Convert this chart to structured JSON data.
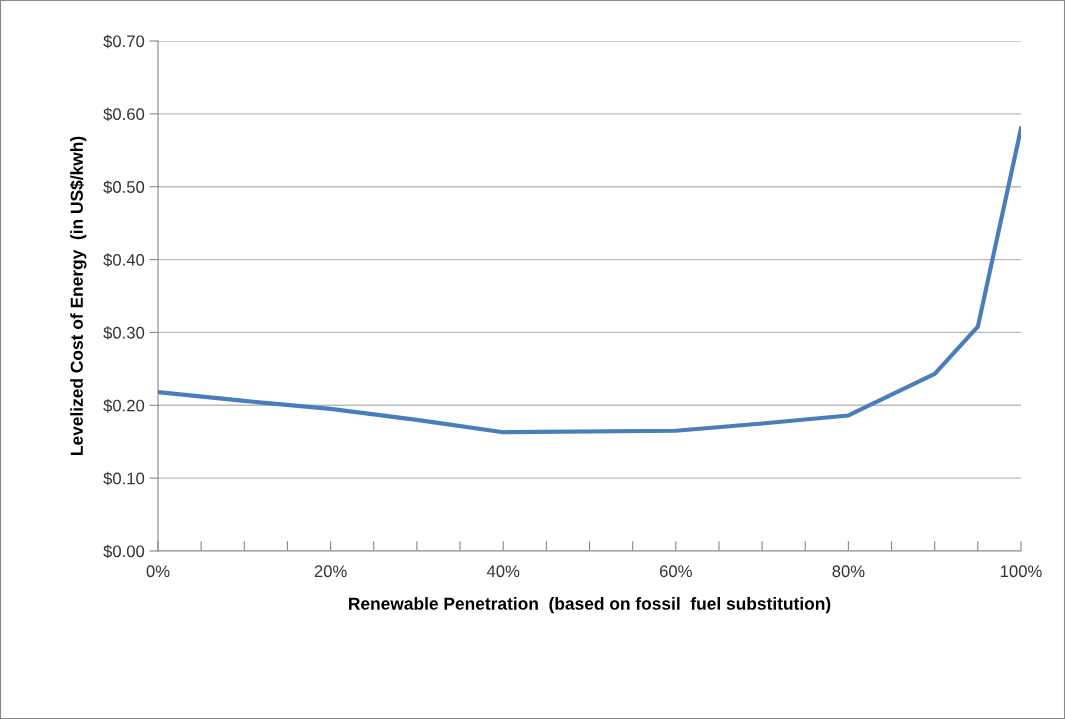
{
  "chart_data": {
    "type": "line",
    "xlabel": "Renewable Penetration  (based on fossil  fuel substitution)",
    "ylabel": "Levelized Cost of Energy  (in US$/kwh)",
    "x": [
      0,
      10,
      20,
      30,
      40,
      60,
      70,
      80,
      90,
      95,
      100
    ],
    "series": [
      {
        "color": "#4a7ebb",
        "values": [
          0.218,
          0.206,
          0.195,
          0.18,
          0.163,
          0.165,
          0.175,
          0.186,
          0.243,
          0.308,
          0.58
        ]
      }
    ],
    "xlim": [
      0,
      100
    ],
    "xticks": [
      {
        "value": 0,
        "label": "0%"
      },
      {
        "value": 5,
        "label": null
      },
      {
        "value": 10,
        "label": null
      },
      {
        "value": 15,
        "label": null
      },
      {
        "value": 20,
        "label": "20%"
      },
      {
        "value": 25,
        "label": null
      },
      {
        "value": 30,
        "label": null
      },
      {
        "value": 35,
        "label": null
      },
      {
        "value": 40,
        "label": "40%"
      },
      {
        "value": 45,
        "label": null
      },
      {
        "value": 50,
        "label": null
      },
      {
        "value": 55,
        "label": null
      },
      {
        "value": 60,
        "label": "60%"
      },
      {
        "value": 65,
        "label": null
      },
      {
        "value": 70,
        "label": null
      },
      {
        "value": 75,
        "label": null
      },
      {
        "value": 80,
        "label": "80%"
      },
      {
        "value": 85,
        "label": null
      },
      {
        "value": 90,
        "label": null
      },
      {
        "value": 95,
        "label": null
      },
      {
        "value": 100,
        "label": "100%"
      }
    ],
    "ylim": [
      0,
      0.7
    ],
    "yticks": [
      {
        "value": 0,
        "label": "$0.00"
      },
      {
        "value": 0.1,
        "label": "$0.10"
      },
      {
        "value": 0.2,
        "label": "$0.20"
      },
      {
        "value": 0.3,
        "label": "$0.30"
      },
      {
        "value": 0.4,
        "label": "$0.40"
      },
      {
        "value": 0.5,
        "label": "$0.50"
      },
      {
        "value": 0.6,
        "label": "$0.60"
      },
      {
        "value": 0.7,
        "label": "$0.70"
      }
    ],
    "grid": "y",
    "marker": "none",
    "line_style": "solid"
  }
}
